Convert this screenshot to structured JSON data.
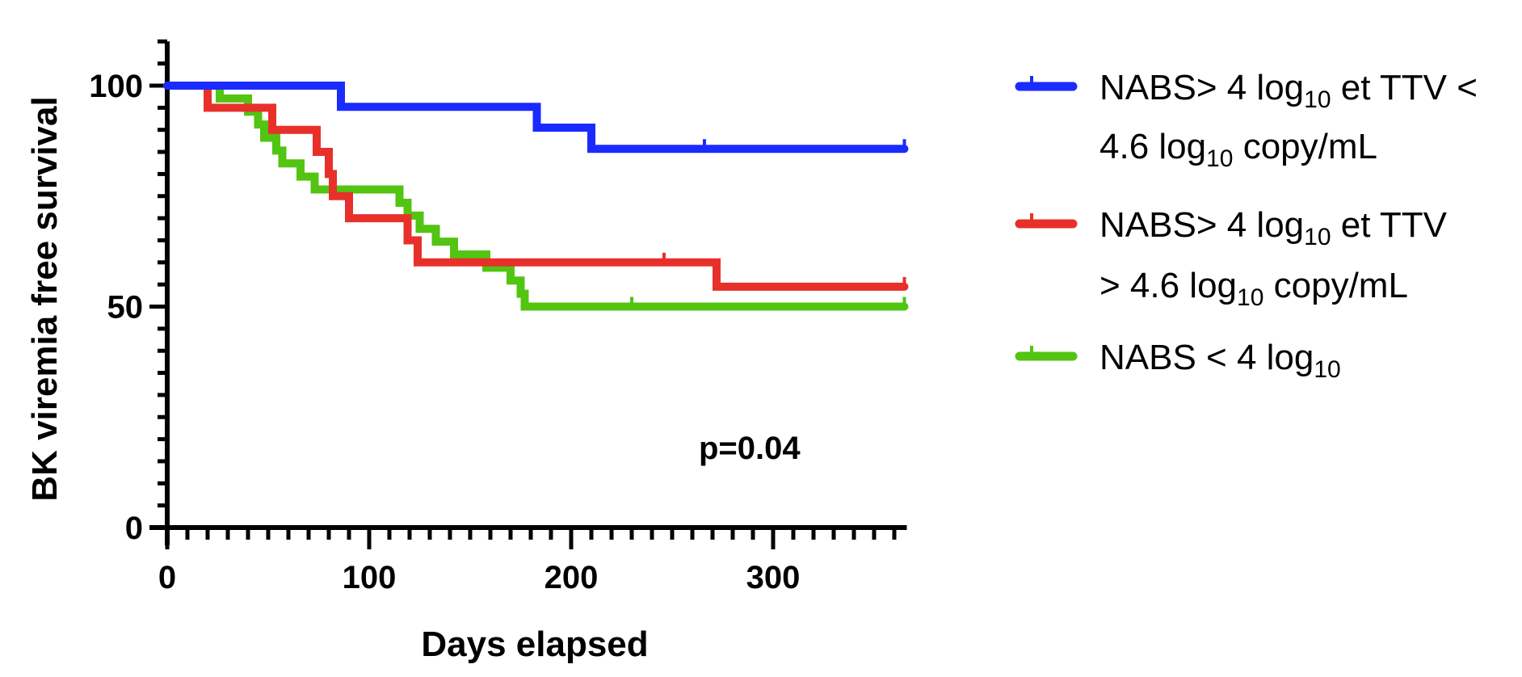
{
  "chart_data": {
    "type": "line",
    "subtype": "kaplan-meier step",
    "title": "",
    "xlabel": "Days elapsed",
    "ylabel": "BK viremia free survival",
    "xlim": [
      0,
      365
    ],
    "ylim": [
      0,
      110
    ],
    "xticks": [
      0,
      100,
      200,
      300
    ],
    "xtick_labels": [
      "0",
      "100",
      "200",
      "300"
    ],
    "yticks": [
      0,
      50,
      100
    ],
    "ytick_labels": [
      "0",
      "50",
      "100"
    ],
    "annotation": "p=0.04",
    "legend_position": "right",
    "series": [
      {
        "name": "NABS> 4 log10 et TTV < 4.6 log10 copy/mL",
        "legend_lines": [
          {
            "parts": [
              {
                "t": "NABS> 4 log"
              },
              {
                "t": "10",
                "sub": true
              },
              {
                "t": " et TTV <"
              }
            ]
          },
          {
            "parts": [
              {
                "t": "4.6 log"
              },
              {
                "t": "10",
                "sub": true
              },
              {
                "t": " copy/mL"
              }
            ]
          }
        ],
        "color": "#1a2bff",
        "steps": [
          [
            0,
            100
          ],
          [
            86,
            95.2
          ],
          [
            183,
            90.5
          ],
          [
            210,
            85.7
          ]
        ],
        "end": 365,
        "censored": [
          266,
          365
        ]
      },
      {
        "name": "NABS> 4 log10 et TTV > 4.6 log10 copy/mL",
        "legend_lines": [
          {
            "parts": [
              {
                "t": "NABS> 4 log"
              },
              {
                "t": "10",
                "sub": true
              },
              {
                "t": "  et TTV"
              }
            ]
          },
          {
            "parts": [
              {
                "t": "> 4.6 log"
              },
              {
                "t": "10",
                "sub": true
              },
              {
                "t": " copy/mL"
              }
            ]
          }
        ],
        "color": "#e8302a",
        "steps": [
          [
            0,
            100
          ],
          [
            20,
            95
          ],
          [
            52,
            90
          ],
          [
            74,
            85
          ],
          [
            80,
            80
          ],
          [
            82,
            75
          ],
          [
            90,
            70
          ],
          [
            119,
            65
          ],
          [
            124,
            60
          ],
          [
            272,
            54.5
          ]
        ],
        "end": 365,
        "censored": [
          246,
          365
        ]
      },
      {
        "name": "NABS < 4 log10",
        "legend_lines": [
          {
            "parts": [
              {
                "t": "NABS < 4 log"
              },
              {
                "t": "10",
                "sub": true
              }
            ]
          }
        ],
        "color": "#52c412",
        "steps": [
          [
            0,
            100
          ],
          [
            26,
            97.1
          ],
          [
            40,
            94.1
          ],
          [
            45,
            91.2
          ],
          [
            48,
            88.2
          ],
          [
            54,
            85.3
          ],
          [
            57,
            82.4
          ],
          [
            66,
            79.4
          ],
          [
            73,
            76.5
          ],
          [
            115,
            73.5
          ],
          [
            119,
            70.6
          ],
          [
            125,
            67.6
          ],
          [
            133,
            64.7
          ],
          [
            142,
            61.8
          ],
          [
            158,
            58.8
          ],
          [
            170,
            55.9
          ],
          [
            175,
            52.9
          ],
          [
            177,
            50
          ]
        ],
        "end": 365,
        "censored": [
          230,
          365
        ]
      }
    ]
  }
}
